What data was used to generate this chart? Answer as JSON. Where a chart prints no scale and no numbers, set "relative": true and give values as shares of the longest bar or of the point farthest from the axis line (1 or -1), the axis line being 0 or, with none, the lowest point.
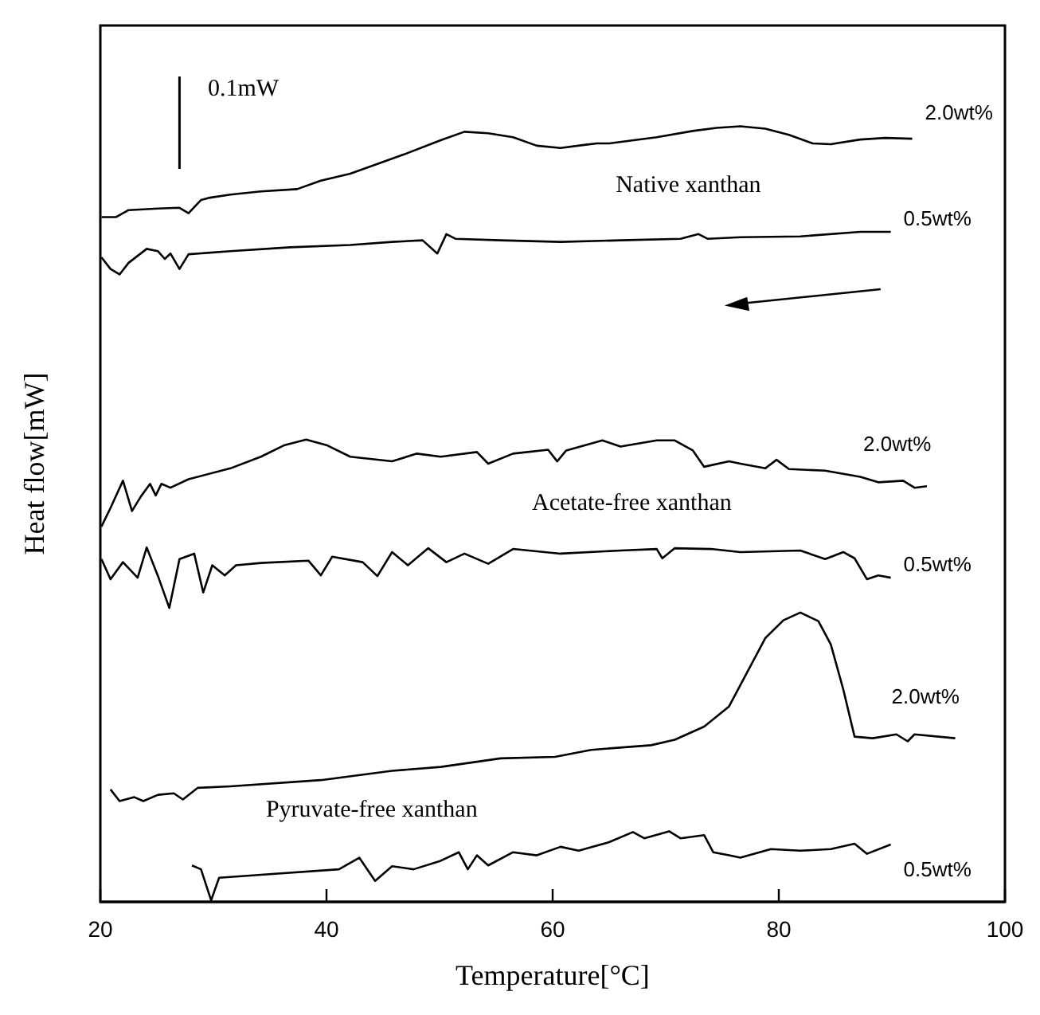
{
  "chart_data": {
    "type": "line",
    "relative": true,
    "xlabel": "Temperature[°C]",
    "ylabel": "Heat flow[mW]",
    "xlim": [
      20,
      100
    ],
    "xticks": [
      20,
      40,
      60,
      80,
      100
    ],
    "marker": "none",
    "line_style": "solid",
    "annotations": [
      "0.1mW",
      "Native xanthan",
      "Acetate-free xanthan",
      "Pyruvate-free xanthan"
    ],
    "series": [
      {
        "name": "2.0wt%",
        "color": "#000000",
        "x": [
          20.1,
          21.4,
          22.5,
          25.1,
          27.0,
          27.8,
          28.9,
          29.7,
          31.5,
          34.2,
          37.4,
          39.5,
          42.1,
          44.8,
          46.9,
          50.1,
          52.2,
          54.3,
          56.5,
          58.6,
          60.7,
          62.8,
          63.9,
          65.0,
          69.2,
          72.4,
          74.5,
          76.6,
          78.8,
          80.9,
          83.0,
          84.6,
          87.2,
          89.4,
          91.8
        ],
        "values": [
          0.883,
          0.883,
          0.892,
          0.894,
          0.895,
          0.888,
          0.905,
          0.908,
          0.912,
          0.916,
          0.919,
          0.93,
          0.939,
          0.953,
          0.964,
          0.982,
          0.993,
          0.991,
          0.986,
          0.975,
          0.972,
          0.976,
          0.978,
          0.978,
          0.986,
          0.994,
          0.998,
          1.0,
          0.997,
          0.989,
          0.978,
          0.977,
          0.983,
          0.985,
          0.984
        ]
      },
      {
        "name": "0.5wt%",
        "color": "#000000",
        "x": [
          20.1,
          20.9,
          21.7,
          22.5,
          24.1,
          25.1,
          25.7,
          26.2,
          27.0,
          27.8,
          31.5,
          36.8,
          42.1,
          45.8,
          48.5,
          49.8,
          50.6,
          51.4,
          55.4,
          60.7,
          66.0,
          71.3,
          72.9,
          73.7,
          76.6,
          81.9,
          87.2,
          89.9
        ],
        "values": [
          0.831,
          0.816,
          0.809,
          0.824,
          0.842,
          0.839,
          0.829,
          0.836,
          0.816,
          0.835,
          0.839,
          0.844,
          0.847,
          0.851,
          0.853,
          0.836,
          0.861,
          0.855,
          0.853,
          0.851,
          0.853,
          0.855,
          0.861,
          0.855,
          0.857,
          0.858,
          0.864,
          0.864
        ]
      },
      {
        "name": "2.0wt%",
        "color": "#000000",
        "x": [
          20.1,
          20.9,
          22.0,
          22.8,
          23.6,
          24.4,
          24.9,
          25.4,
          26.2,
          27.8,
          31.5,
          34.2,
          36.3,
          38.2,
          40.0,
          42.1,
          45.8,
          48.0,
          50.1,
          53.3,
          54.3,
          56.5,
          59.6,
          60.4,
          61.2,
          64.4,
          66.0,
          69.2,
          70.8,
          72.4,
          73.4,
          75.6,
          76.6,
          78.8,
          79.8,
          80.9,
          84.1,
          87.2,
          88.8,
          91.0,
          92.0,
          93.1
        ],
        "values": [
          0.484,
          0.508,
          0.543,
          0.504,
          0.523,
          0.539,
          0.524,
          0.539,
          0.534,
          0.545,
          0.559,
          0.574,
          0.589,
          0.596,
          0.589,
          0.574,
          0.568,
          0.578,
          0.574,
          0.58,
          0.565,
          0.578,
          0.583,
          0.568,
          0.582,
          0.595,
          0.587,
          0.595,
          0.595,
          0.582,
          0.561,
          0.568,
          0.565,
          0.559,
          0.57,
          0.558,
          0.556,
          0.548,
          0.541,
          0.543,
          0.534,
          0.536
        ]
      },
      {
        "name": "0.5wt%",
        "color": "#000000",
        "x": [
          20.1,
          20.9,
          22.0,
          23.3,
          24.1,
          25.1,
          26.1,
          27.0,
          28.3,
          29.1,
          29.9,
          31.0,
          32.0,
          34.2,
          38.4,
          39.5,
          40.5,
          43.2,
          44.5,
          45.8,
          47.2,
          49.0,
          50.6,
          52.2,
          54.3,
          56.5,
          60.7,
          66.0,
          69.2,
          69.7,
          70.8,
          74.0,
          76.6,
          81.9,
          84.1,
          85.7,
          86.7,
          87.8,
          88.8,
          89.9
        ],
        "values": [
          0.442,
          0.416,
          0.438,
          0.418,
          0.457,
          0.42,
          0.379,
          0.442,
          0.449,
          0.399,
          0.434,
          0.421,
          0.434,
          0.437,
          0.44,
          0.421,
          0.445,
          0.438,
          0.42,
          0.451,
          0.434,
          0.456,
          0.438,
          0.449,
          0.436,
          0.455,
          0.449,
          0.453,
          0.455,
          0.443,
          0.456,
          0.455,
          0.451,
          0.453,
          0.442,
          0.451,
          0.443,
          0.416,
          0.421,
          0.418
        ]
      },
      {
        "name": "2.0wt%",
        "color": "#000000",
        "x": [
          20.9,
          21.7,
          23.0,
          23.8,
          25.1,
          26.5,
          27.3,
          28.6,
          31.5,
          39.5,
          45.8,
          50.1,
          55.4,
          60.2,
          63.4,
          68.7,
          70.8,
          73.4,
          75.6,
          77.2,
          78.8,
          80.4,
          81.9,
          83.5,
          84.6,
          85.7,
          86.7,
          88.3,
          90.4,
          91.4,
          92.0,
          95.6
        ],
        "values": [
          0.145,
          0.13,
          0.135,
          0.13,
          0.138,
          0.14,
          0.132,
          0.147,
          0.149,
          0.157,
          0.169,
          0.174,
          0.185,
          0.187,
          0.196,
          0.202,
          0.209,
          0.226,
          0.252,
          0.296,
          0.34,
          0.363,
          0.373,
          0.362,
          0.332,
          0.274,
          0.213,
          0.211,
          0.216,
          0.207,
          0.216,
          0.211
        ]
      },
      {
        "name": "0.5wt%",
        "color": "#000000",
        "x": [
          28.1,
          28.9,
          29.8,
          30.5,
          34.2,
          41.1,
          42.9,
          44.3,
          45.8,
          47.7,
          50.1,
          51.7,
          52.5,
          53.3,
          54.3,
          56.5,
          58.6,
          60.7,
          62.3,
          65.0,
          67.1,
          68.1,
          70.3,
          71.3,
          73.4,
          74.2,
          75.6,
          76.6,
          79.3,
          81.9,
          84.6,
          86.7,
          87.8,
          89.9
        ],
        "values": [
          0.047,
          0.042,
          0.002,
          0.031,
          0.035,
          0.042,
          0.057,
          0.027,
          0.046,
          0.042,
          0.053,
          0.064,
          0.042,
          0.06,
          0.047,
          0.064,
          0.06,
          0.071,
          0.066,
          0.077,
          0.09,
          0.082,
          0.091,
          0.082,
          0.086,
          0.064,
          0.06,
          0.057,
          0.068,
          0.066,
          0.068,
          0.075,
          0.062,
          0.074
        ]
      }
    ]
  }
}
